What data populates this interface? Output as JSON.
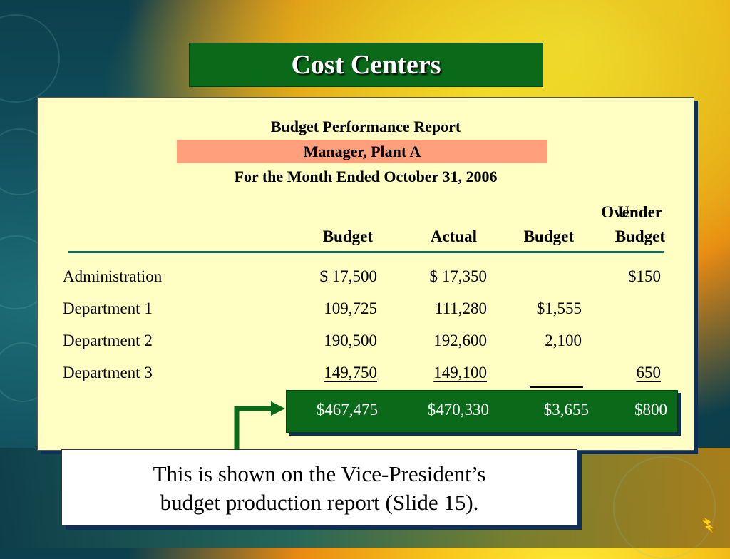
{
  "slide": {
    "title": "Cost Centers"
  },
  "report": {
    "title": "Budget Performance Report",
    "subtitle": "Manager, Plant A",
    "period": "For the Month Ended October 31, 2006"
  },
  "columns": {
    "budget": "Budget",
    "actual": "Actual",
    "over_top": "Over",
    "over_bottom": "Budget",
    "under_top": "Under",
    "under_bottom": "Budget"
  },
  "rows": [
    {
      "label": "Administration",
      "budget": "$ 17,500",
      "actual": "$ 17,350",
      "over": "",
      "under": "$150"
    },
    {
      "label": "Department 1",
      "budget": "109,725",
      "actual": "111,280",
      "over": "$1,555",
      "under": ""
    },
    {
      "label": "Department 2",
      "budget": "190,500",
      "actual": "192,600",
      "over": "2,100",
      "under": ""
    },
    {
      "label": "Department 3",
      "budget": "149,750",
      "actual": "149,100",
      "over": "",
      "under": "650"
    }
  ],
  "totals": {
    "budget": "$467,475",
    "actual": "$470,330",
    "over": "$3,655",
    "under": "$800"
  },
  "note": {
    "line1": "This is shown on the Vice-President’s",
    "line2": "budget production report (Slide 15)."
  },
  "colors": {
    "title_bg": "#0a6a1a",
    "panel_bg": "#ffffc4",
    "highlight": "#ff9f7c",
    "rule": "#0b6f60"
  },
  "icons": {
    "corner": "lightning-bolt-icon",
    "pointer": "arrow-right-icon"
  }
}
